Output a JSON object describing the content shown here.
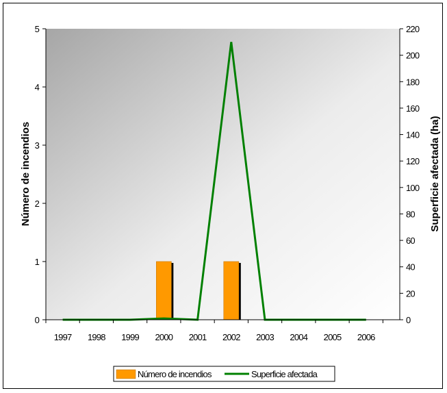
{
  "chart_data": {
    "type": "bar",
    "categories": [
      "1997",
      "1998",
      "1999",
      "2000",
      "2001",
      "2002",
      "2003",
      "2004",
      "2005",
      "2006"
    ],
    "series": [
      {
        "name": "Número de incendios",
        "type": "bar",
        "axis": "left",
        "color": "#FF9900",
        "values": [
          0,
          0,
          0,
          1,
          0,
          1,
          0,
          0,
          0,
          0
        ]
      },
      {
        "name": "Superficie afectada",
        "type": "line",
        "axis": "right",
        "color": "#008000",
        "values": [
          0,
          0,
          0,
          1,
          0,
          210,
          0,
          0,
          0,
          0
        ]
      }
    ],
    "ylabel": "Número de incendios",
    "y2label": "Superficie afectada (ha)",
    "ylim": [
      0,
      5
    ],
    "yticks": [
      0,
      1,
      2,
      3,
      4,
      5
    ],
    "y2lim": [
      0,
      220
    ],
    "y2ticks": [
      0,
      20,
      40,
      60,
      80,
      100,
      120,
      140,
      160,
      180,
      200,
      220
    ],
    "grid": false,
    "legend": "bottom",
    "legend_items": [
      "Número de incendios",
      "Superficie afectada"
    ]
  }
}
